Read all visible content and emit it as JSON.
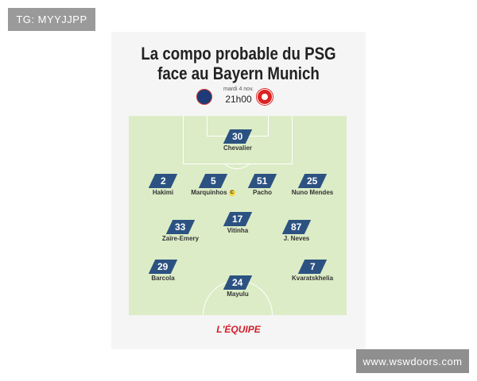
{
  "watermark_top": "TG: MYYJJPP",
  "watermark_bottom": "www.wswdoors.com",
  "title_line1": "La compo probable du PSG",
  "title_line2": "face au Bayern Munich",
  "date": "mardi 4 nov.",
  "time": "21h00",
  "brand": "L'ÉQUIPE",
  "captain_mark": "C",
  "colors": {
    "badge": "#2c5282",
    "pitch": "#dcecc6",
    "brand": "#d11f2a"
  },
  "players": [
    {
      "number": "30",
      "name": "Chevalier"
    },
    {
      "number": "2",
      "name": "Hakimi"
    },
    {
      "number": "5",
      "name": "Marquinhos",
      "captain": true
    },
    {
      "number": "51",
      "name": "Pacho"
    },
    {
      "number": "25",
      "name": "Nuno Mendes"
    },
    {
      "number": "33",
      "name": "Zaïre-Emery"
    },
    {
      "number": "17",
      "name": "Vitinha"
    },
    {
      "number": "87",
      "name": "J. Neves"
    },
    {
      "number": "29",
      "name": "Barcola"
    },
    {
      "number": "24",
      "name": "Mayulu"
    },
    {
      "number": "7",
      "name": "Kvaratskhelia"
    }
  ]
}
